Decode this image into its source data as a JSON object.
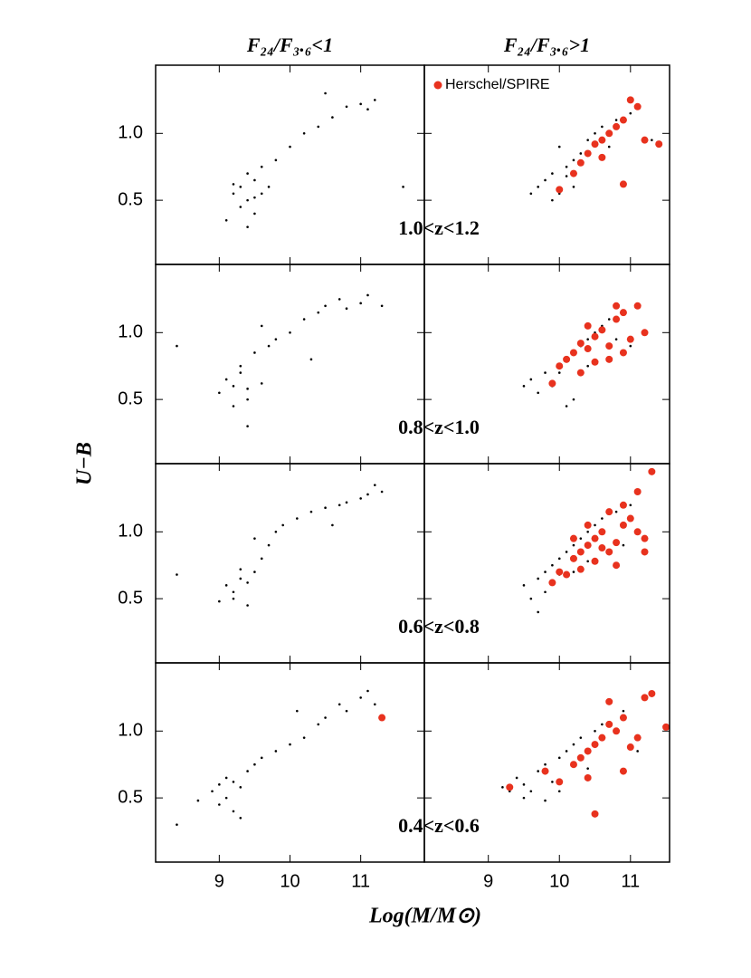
{
  "chart_data": {
    "type": "scatter",
    "ylabel": "U−B",
    "xlabel": "Log(M/M⊙)",
    "ylim": [
      0.02,
      1.51
    ],
    "yticks": [
      {
        "value": 0.5,
        "label": "0.5"
      },
      {
        "value": 1,
        "label": "1.0"
      }
    ],
    "columns": [
      {
        "title": "F₂₄/F₃.₆<1",
        "xlim": [
          8.1,
          11.9
        ],
        "xticks": [
          9,
          10,
          11
        ]
      },
      {
        "title": "F₂₄/F₃.₆>1",
        "xlim": [
          8.1,
          11.55
        ],
        "xticks": [
          9,
          10,
          11
        ]
      }
    ],
    "panels": [
      {
        "annotation": "1.0<z<1.2",
        "left": {
          "series": [
            {
              "color": "#000000",
              "x": [
                9.2,
                9.3,
                9.4,
                9.5,
                9.6,
                9.3,
                9.4,
                9.5,
                9.2,
                9.6,
                9.7,
                9.1,
                9.8,
                10.0,
                10.2,
                10.4,
                10.6,
                10.8,
                11.0,
                11.2,
                9.4,
                9.5,
                10.5,
                11.1,
                11.6
              ],
              "values": [
                0.55,
                0.6,
                0.5,
                0.65,
                0.55,
                0.45,
                0.7,
                0.4,
                0.62,
                0.75,
                0.6,
                0.35,
                0.8,
                0.9,
                1.0,
                1.05,
                1.12,
                1.2,
                1.22,
                1.25,
                0.3,
                0.52,
                1.3,
                1.18,
                0.6
              ]
            }
          ]
        },
        "right": {
          "series": [
            {
              "color": "#000000",
              "x": [
                9.7,
                9.8,
                9.9,
                10.0,
                10.1,
                10.2,
                10.3,
                9.9,
                10.0,
                10.4,
                10.5,
                10.2,
                9.6,
                10.1,
                10.6,
                10.7,
                10.3,
                10.8,
                11.0,
                11.3
              ],
              "values": [
                0.6,
                0.65,
                0.7,
                0.55,
                0.75,
                0.8,
                0.85,
                0.5,
                0.9,
                0.95,
                1.0,
                0.6,
                0.55,
                0.68,
                1.05,
                0.9,
                0.78,
                1.1,
                1.15,
                0.95
              ]
            },
            {
              "name": "Herschel/SPIRE",
              "color": "#e8321e",
              "x": [
                10.0,
                10.2,
                10.3,
                10.4,
                10.5,
                10.6,
                10.7,
                10.8,
                10.9,
                11.0,
                11.1,
                11.2,
                10.9,
                11.4,
                10.6
              ],
              "values": [
                0.58,
                0.7,
                0.78,
                0.85,
                0.92,
                0.95,
                1.0,
                1.05,
                0.62,
                1.25,
                1.2,
                0.95,
                1.1,
                0.92,
                0.82
              ]
            }
          ]
        }
      },
      {
        "annotation": "0.8<z<1.0",
        "left": {
          "series": [
            {
              "color": "#000000",
              "x": [
                9.0,
                9.1,
                9.2,
                9.3,
                9.4,
                9.2,
                9.3,
                9.4,
                9.5,
                9.6,
                9.7,
                9.8,
                10.0,
                10.2,
                10.4,
                10.5,
                10.7,
                10.8,
                11.0,
                11.1,
                11.3,
                8.4,
                9.4,
                9.6,
                10.3
              ],
              "values": [
                0.55,
                0.65,
                0.6,
                0.7,
                0.58,
                0.45,
                0.75,
                0.5,
                0.85,
                0.62,
                0.9,
                0.95,
                1.0,
                1.1,
                1.15,
                1.2,
                1.25,
                1.18,
                1.22,
                1.28,
                1.2,
                0.9,
                0.3,
                1.05,
                0.8
              ]
            }
          ]
        },
        "right": {
          "series": [
            {
              "color": "#000000",
              "x": [
                9.6,
                9.8,
                9.9,
                10.0,
                10.1,
                9.7,
                10.2,
                10.3,
                10.0,
                10.4,
                10.5,
                10.6,
                9.5,
                10.2,
                10.7,
                10.8,
                10.1,
                10.9,
                11.0,
                10.4
              ],
              "values": [
                0.65,
                0.7,
                0.6,
                0.75,
                0.8,
                0.55,
                0.85,
                0.9,
                0.7,
                0.95,
                1.0,
                1.05,
                0.6,
                0.5,
                1.1,
                0.95,
                0.45,
                1.15,
                0.9,
                0.75
              ]
            },
            {
              "color": "#e8321e",
              "x": [
                9.9,
                10.0,
                10.1,
                10.2,
                10.3,
                10.4,
                10.5,
                10.6,
                10.7,
                10.8,
                10.9,
                11.0,
                11.1,
                10.3,
                10.5,
                10.7,
                10.9,
                11.2,
                10.8,
                10.4
              ],
              "values": [
                0.62,
                0.75,
                0.8,
                0.85,
                0.92,
                0.88,
                0.97,
                1.02,
                0.8,
                1.1,
                1.15,
                0.95,
                1.2,
                0.7,
                0.78,
                0.9,
                0.85,
                1.0,
                1.2,
                1.05
              ]
            }
          ]
        }
      },
      {
        "annotation": "0.6<z<0.8",
        "left": {
          "series": [
            {
              "color": "#000000",
              "x": [
                9.1,
                9.2,
                9.3,
                9.4,
                9.5,
                9.2,
                9.3,
                9.4,
                9.6,
                9.7,
                9.8,
                9.9,
                10.1,
                10.3,
                10.5,
                10.7,
                10.8,
                11.0,
                11.1,
                11.3,
                8.4,
                9.0,
                9.5,
                10.6,
                11.2
              ],
              "values": [
                0.6,
                0.55,
                0.65,
                0.62,
                0.7,
                0.5,
                0.72,
                0.45,
                0.8,
                0.9,
                1.0,
                1.05,
                1.1,
                1.15,
                1.18,
                1.2,
                1.22,
                1.25,
                1.28,
                1.3,
                0.68,
                0.48,
                0.95,
                1.05,
                1.35
              ]
            }
          ]
        },
        "right": {
          "series": [
            {
              "color": "#000000",
              "x": [
                9.5,
                9.7,
                9.8,
                9.9,
                10.0,
                10.1,
                10.2,
                9.8,
                10.3,
                10.4,
                9.6,
                10.0,
                10.5,
                10.6,
                10.8,
                10.2,
                10.9,
                11.0,
                10.4,
                9.7
              ],
              "values": [
                0.6,
                0.65,
                0.7,
                0.75,
                0.8,
                0.85,
                0.9,
                0.55,
                0.95,
                1.0,
                0.5,
                0.68,
                1.05,
                1.1,
                1.15,
                0.7,
                0.9,
                1.2,
                0.78,
                0.4
              ]
            },
            {
              "color": "#e8321e",
              "x": [
                9.9,
                10.0,
                10.1,
                10.2,
                10.3,
                10.4,
                10.5,
                10.6,
                10.7,
                10.8,
                10.9,
                11.0,
                11.1,
                11.2,
                10.3,
                10.5,
                10.7,
                10.9,
                11.1,
                10.4,
                10.6,
                10.8,
                11.3,
                10.2,
                11.2
              ],
              "values": [
                0.62,
                0.7,
                0.68,
                0.8,
                0.85,
                0.9,
                0.95,
                1.0,
                0.85,
                0.92,
                1.05,
                1.1,
                1.0,
                0.95,
                0.72,
                0.78,
                1.15,
                1.2,
                1.3,
                1.05,
                0.88,
                0.75,
                1.45,
                0.95,
                0.85
              ]
            }
          ]
        }
      },
      {
        "annotation": "0.4<z<0.6",
        "left": {
          "series": [
            {
              "color": "#000000",
              "x": [
                8.9,
                9.0,
                9.1,
                9.2,
                9.3,
                9.0,
                9.1,
                9.2,
                9.4,
                9.5,
                9.6,
                9.8,
                10.0,
                10.2,
                10.4,
                10.5,
                10.7,
                10.8,
                11.0,
                11.1,
                8.4,
                8.7,
                9.3,
                10.1,
                11.2
              ],
              "values": [
                0.55,
                0.6,
                0.5,
                0.62,
                0.58,
                0.45,
                0.65,
                0.4,
                0.7,
                0.75,
                0.8,
                0.85,
                0.9,
                0.95,
                1.05,
                1.1,
                1.2,
                1.15,
                1.25,
                1.3,
                0.3,
                0.48,
                0.35,
                1.15,
                1.2
              ]
            },
            {
              "color": "#e8321e",
              "x": [
                11.3
              ],
              "values": [
                1.1
              ]
            }
          ]
        },
        "right": {
          "series": [
            {
              "color": "#000000",
              "x": [
                9.2,
                9.4,
                9.5,
                9.6,
                9.7,
                9.8,
                9.9,
                10.0,
                10.1,
                10.2,
                9.5,
                9.8,
                10.3,
                10.4,
                10.5,
                10.0,
                10.6,
                10.9,
                11.1,
                9.3
              ],
              "values": [
                0.58,
                0.65,
                0.6,
                0.55,
                0.7,
                0.75,
                0.62,
                0.8,
                0.85,
                0.9,
                0.5,
                0.48,
                0.95,
                0.72,
                1.0,
                0.55,
                1.05,
                1.15,
                0.85,
                0.55
              ]
            },
            {
              "color": "#e8321e",
              "x": [
                9.3,
                9.8,
                10.0,
                10.2,
                10.3,
                10.4,
                10.5,
                10.6,
                10.7,
                10.8,
                10.9,
                11.0,
                11.1,
                11.2,
                11.3,
                11.5,
                10.5,
                10.7,
                10.4,
                10.9
              ],
              "values": [
                0.58,
                0.7,
                0.62,
                0.75,
                0.8,
                0.85,
                0.9,
                0.95,
                1.05,
                1.0,
                1.1,
                0.88,
                0.95,
                1.25,
                1.28,
                1.03,
                0.38,
                1.22,
                0.65,
                0.7
              ]
            }
          ]
        }
      }
    ]
  }
}
